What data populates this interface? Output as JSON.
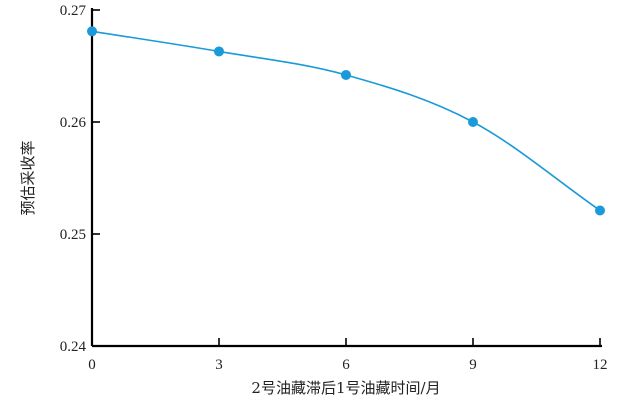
{
  "chart_data": {
    "type": "line",
    "title": "",
    "xlabel": "2号油藏滞后1号油藏时间/月",
    "ylabel": "预估采收率",
    "xlim": [
      0,
      12
    ],
    "ylim": [
      0.24,
      0.27
    ],
    "xticks": [
      0,
      3,
      6,
      9,
      12
    ],
    "yticks": [
      0.24,
      0.25,
      0.26,
      0.27
    ],
    "x": [
      0,
      3,
      6,
      9,
      12
    ],
    "series": [
      {
        "values": [
          0.2681,
          0.2663,
          0.2642,
          0.26,
          0.2521
        ],
        "color": "#1a9ad9"
      }
    ],
    "grid": false,
    "legend": "none"
  }
}
